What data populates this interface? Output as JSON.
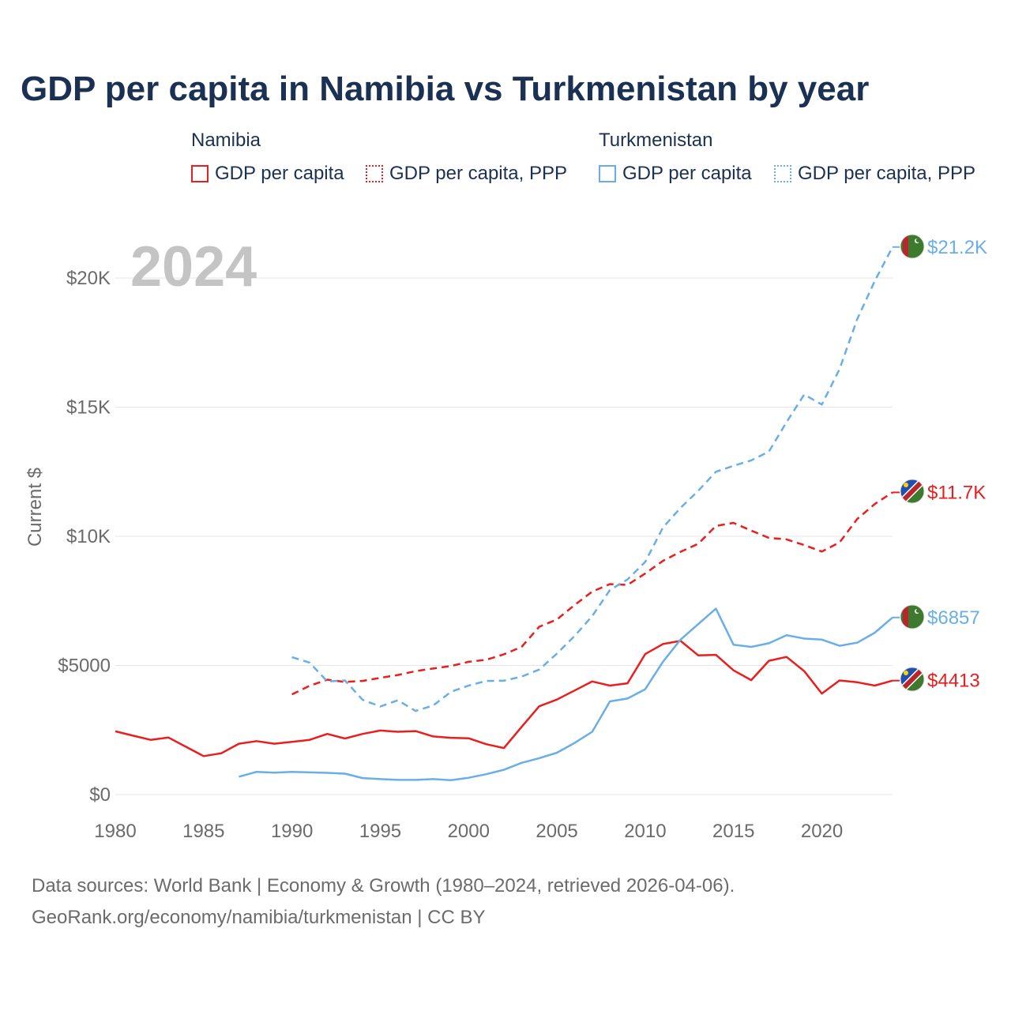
{
  "title": "GDP per capita in Namibia vs Turkmenistan by year",
  "legend": {
    "groups": [
      {
        "country": "Namibia",
        "solid_label": "GDP per capita",
        "dashed_label": "GDP per capita, PPP"
      },
      {
        "country": "Turkmenistan",
        "solid_label": "GDP per capita",
        "dashed_label": "GDP per capita, PPP"
      }
    ]
  },
  "colors": {
    "namibia": "#ea1e1e",
    "turkmenistan": "#6aaee8",
    "title": "#1b3154",
    "axis_text": "#6b6b6b",
    "year_watermark": "#c4c4c4"
  },
  "chart_data": {
    "type": "line",
    "title": "GDP per capita in Namibia vs Turkmenistan by year",
    "year_label": "2024",
    "xlabel": "",
    "ylabel": "Current $",
    "xlim": [
      1980,
      2024
    ],
    "ylim": [
      0,
      21500
    ],
    "x_ticks": [
      1980,
      1985,
      1990,
      1995,
      2000,
      2005,
      2010,
      2015,
      2020
    ],
    "y_ticks": [
      {
        "value": 0,
        "label": "$0"
      },
      {
        "value": 5000,
        "label": "$5000"
      },
      {
        "value": 10000,
        "label": "$10K"
      },
      {
        "value": 15000,
        "label": "$15K"
      },
      {
        "value": 20000,
        "label": "$20K"
      }
    ],
    "series": [
      {
        "name": "Namibia GDP per capita",
        "country": "Namibia",
        "style": "solid",
        "color": "#ea1e1e",
        "end_label": "$4413",
        "x": [
          1980,
          1981,
          1982,
          1983,
          1984,
          1985,
          1986,
          1987,
          1988,
          1989,
          1990,
          1991,
          1992,
          1993,
          1994,
          1995,
          1996,
          1997,
          1998,
          1999,
          2000,
          2001,
          2002,
          2003,
          2004,
          2005,
          2006,
          2007,
          2008,
          2009,
          2010,
          2011,
          2012,
          2013,
          2014,
          2015,
          2016,
          2017,
          2018,
          2019,
          2020,
          2021,
          2022,
          2023,
          2024
        ],
        "values": [
          2450,
          2280,
          2120,
          2210,
          1850,
          1490,
          1600,
          1970,
          2070,
          1970,
          2040,
          2120,
          2350,
          2170,
          2350,
          2480,
          2430,
          2460,
          2250,
          2200,
          2180,
          1950,
          1800,
          2620,
          3420,
          3680,
          4030,
          4380,
          4220,
          4310,
          5440,
          5830,
          5950,
          5390,
          5410,
          4810,
          4430,
          5180,
          5330,
          4780,
          3910,
          4420,
          4350,
          4220,
          4413
        ]
      },
      {
        "name": "Namibia GDP per capita, PPP",
        "country": "Namibia",
        "style": "dashed",
        "color": "#ea1e1e",
        "end_label": "$11.7K",
        "x": [
          1990,
          1991,
          1992,
          1993,
          1994,
          1995,
          1996,
          1997,
          1998,
          1999,
          2000,
          2001,
          2002,
          2003,
          2004,
          2005,
          2006,
          2007,
          2008,
          2009,
          2010,
          2011,
          2012,
          2013,
          2014,
          2015,
          2016,
          2017,
          2018,
          2019,
          2020,
          2021,
          2022,
          2023,
          2024
        ],
        "values": [
          3880,
          4210,
          4450,
          4360,
          4400,
          4520,
          4630,
          4780,
          4880,
          4980,
          5140,
          5220,
          5430,
          5720,
          6500,
          6780,
          7340,
          7860,
          8150,
          8120,
          8560,
          9050,
          9400,
          9710,
          10400,
          10520,
          10220,
          9940,
          9880,
          9660,
          9410,
          9760,
          10670,
          11250,
          11700
        ]
      },
      {
        "name": "Turkmenistan GDP per capita",
        "country": "Turkmenistan",
        "style": "solid",
        "color": "#6aaee8",
        "end_label": "$6857",
        "x": [
          1987,
          1988,
          1989,
          1990,
          1991,
          1992,
          1993,
          1994,
          1995,
          1996,
          1997,
          1998,
          1999,
          2000,
          2001,
          2002,
          2003,
          2004,
          2005,
          2006,
          2007,
          2008,
          2009,
          2010,
          2011,
          2012,
          2013,
          2014,
          2015,
          2016,
          2017,
          2018,
          2019,
          2020,
          2021,
          2022,
          2023,
          2024
        ],
        "values": [
          690,
          880,
          850,
          880,
          860,
          840,
          810,
          640,
          600,
          570,
          570,
          600,
          560,
          650,
          790,
          960,
          1230,
          1410,
          1620,
          2000,
          2430,
          3610,
          3720,
          4080,
          5140,
          6000,
          6600,
          7200,
          5800,
          5720,
          5860,
          6170,
          6040,
          6000,
          5760,
          5880,
          6270,
          6857
        ]
      },
      {
        "name": "Turkmenistan GDP per capita, PPP",
        "country": "Turkmenistan",
        "style": "dashed",
        "color": "#6aaee8",
        "end_label": "$21.2K",
        "x": [
          1990,
          1991,
          1992,
          1993,
          1994,
          1995,
          1996,
          1997,
          1998,
          1999,
          2000,
          2001,
          2002,
          2003,
          2004,
          2005,
          2006,
          2007,
          2008,
          2009,
          2010,
          2011,
          2012,
          2013,
          2014,
          2015,
          2016,
          2017,
          2018,
          2019,
          2020,
          2021,
          2022,
          2023,
          2024
        ],
        "values": [
          5320,
          5110,
          4380,
          4420,
          3670,
          3410,
          3650,
          3240,
          3450,
          3980,
          4220,
          4400,
          4410,
          4570,
          4840,
          5460,
          6140,
          6910,
          7920,
          8330,
          9010,
          10340,
          11100,
          11760,
          12500,
          12730,
          12940,
          13280,
          14420,
          15490,
          15100,
          16470,
          18410,
          19890,
          21200
        ]
      }
    ]
  },
  "footer": {
    "line1": "Data sources: World Bank | Economy & Growth (1980–2024, retrieved 2026-04-06).",
    "line2": "GeoRank.org/economy/namibia/turkmenistan | CC BY"
  }
}
